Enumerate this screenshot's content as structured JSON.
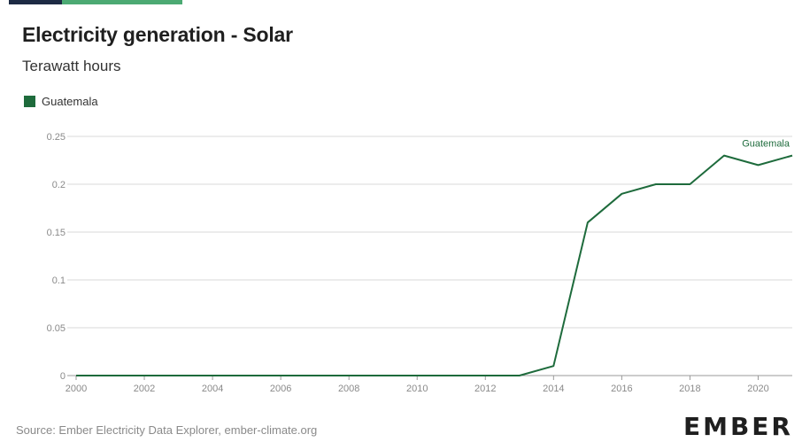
{
  "header": {
    "title": "Electricity generation - Solar",
    "subtitle": "Terawatt hours"
  },
  "legend": {
    "label": "Guatemala"
  },
  "footer": {
    "source": "Source: Ember Electricity Data Explorer, ember-climate.org",
    "logo": "EMBER"
  },
  "colors": {
    "series": "#1e6b3c",
    "grid": "#d9d9d9",
    "axis_text": "#8a8a8a"
  },
  "chart_data": {
    "type": "line",
    "title": "Electricity generation - Solar",
    "subtitle": "Terawatt hours",
    "xlabel": "",
    "ylabel": "",
    "xlim": [
      2000,
      2021
    ],
    "ylim": [
      0,
      0.25
    ],
    "x_ticks": [
      "2000",
      "2002",
      "2004",
      "2006",
      "2008",
      "2010",
      "2012",
      "2014",
      "2016",
      "2018",
      "2020"
    ],
    "y_ticks": [
      "0",
      "0.05",
      "0.1",
      "0.15",
      "0.2",
      "0.25"
    ],
    "grid": true,
    "legend_position": "top-left",
    "series": [
      {
        "name": "Guatemala",
        "color": "#1e6b3c",
        "x": [
          2000,
          2001,
          2002,
          2003,
          2004,
          2005,
          2006,
          2007,
          2008,
          2009,
          2010,
          2011,
          2012,
          2013,
          2014,
          2015,
          2016,
          2017,
          2018,
          2019,
          2020,
          2021
        ],
        "values": [
          0,
          0,
          0,
          0,
          0,
          0,
          0,
          0,
          0,
          0,
          0,
          0,
          0,
          0,
          0.01,
          0.16,
          0.19,
          0.2,
          0.2,
          0.23,
          0.22,
          0.23
        ]
      }
    ],
    "annotations": [
      "Guatemala"
    ]
  }
}
